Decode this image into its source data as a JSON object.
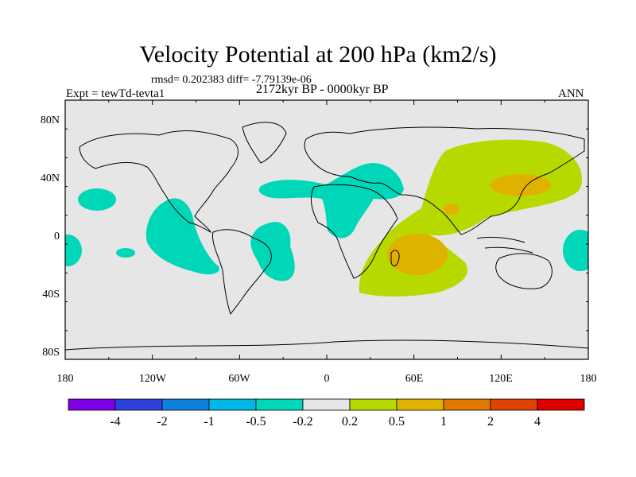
{
  "title": "Velocity Potential at 200 hPa (km2/s)",
  "stats": "rmsd= 0.202383 diff= -7.79139e-06",
  "experiment": "Expt = tewTd-tevta1",
  "period": "2172kyr BP - 0000kyr BP",
  "season": "ANN",
  "colors": {
    "neutral": "#e6e6e6",
    "neg_0_5": "#00d7b9",
    "pos_0_2": "#b8d900",
    "pos_0_5": "#e0b200"
  },
  "lat_labels": [
    "80N",
    "40N",
    "0",
    "40S",
    "80S"
  ],
  "lon_labels": [
    "180",
    "120W",
    "60W",
    "0",
    "60E",
    "120E",
    "180"
  ],
  "colorbar": {
    "colors": [
      "#7f00e6",
      "#2e41dc",
      "#0f80e0",
      "#00b8e6",
      "#00d7b9",
      "#e6e6e6",
      "#b8d900",
      "#e0b200",
      "#e07800",
      "#e04400",
      "#e00000"
    ],
    "labels": [
      "-4",
      "-2",
      "-1",
      "-0.5",
      "-0.2",
      "0.2",
      "0.5",
      "1",
      "2",
      "4"
    ]
  }
}
